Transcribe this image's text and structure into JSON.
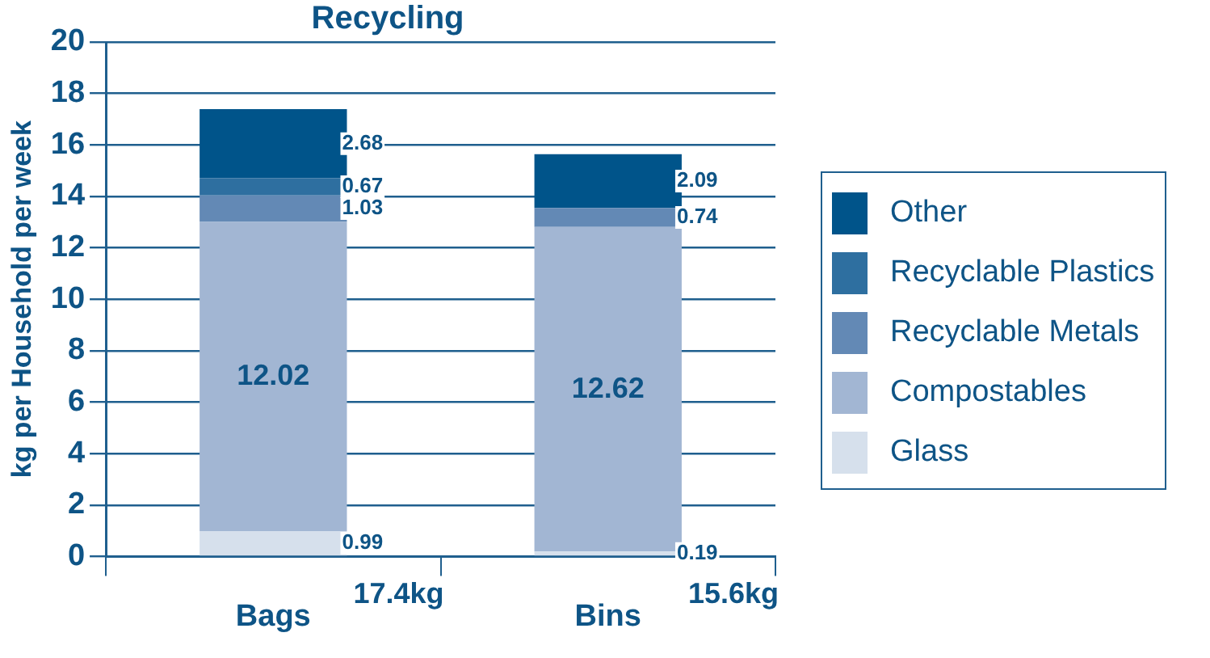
{
  "chart_data": {
    "type": "bar",
    "title": "Recycling",
    "ylabel": "kg per Household per week",
    "categories": [
      "Bags",
      "Bins"
    ],
    "stacked": true,
    "data_labels": true,
    "grid": "y",
    "legend": "right",
    "ylim": [
      0,
      20
    ],
    "yticks": [
      0,
      2,
      4,
      6,
      8,
      10,
      12,
      14,
      16,
      18,
      20
    ],
    "totals": [
      "17.4kg",
      "15.6kg"
    ],
    "series": [
      {
        "name": "Glass",
        "color": "#d6e0ec",
        "values": [
          0.99,
          0.19
        ]
      },
      {
        "name": "Compostables",
        "color": "#a2b6d3",
        "values": [
          12.02,
          12.62
        ]
      },
      {
        "name": "Recyclable Metals",
        "color": "#6389b5",
        "values": [
          1.03,
          0.74
        ]
      },
      {
        "name": "Recyclable Plastics",
        "color": "#2e6fa0",
        "values": [
          0.67,
          null
        ]
      },
      {
        "name": "Other",
        "color": "#00548a",
        "values": [
          2.68,
          2.09
        ]
      }
    ]
  }
}
